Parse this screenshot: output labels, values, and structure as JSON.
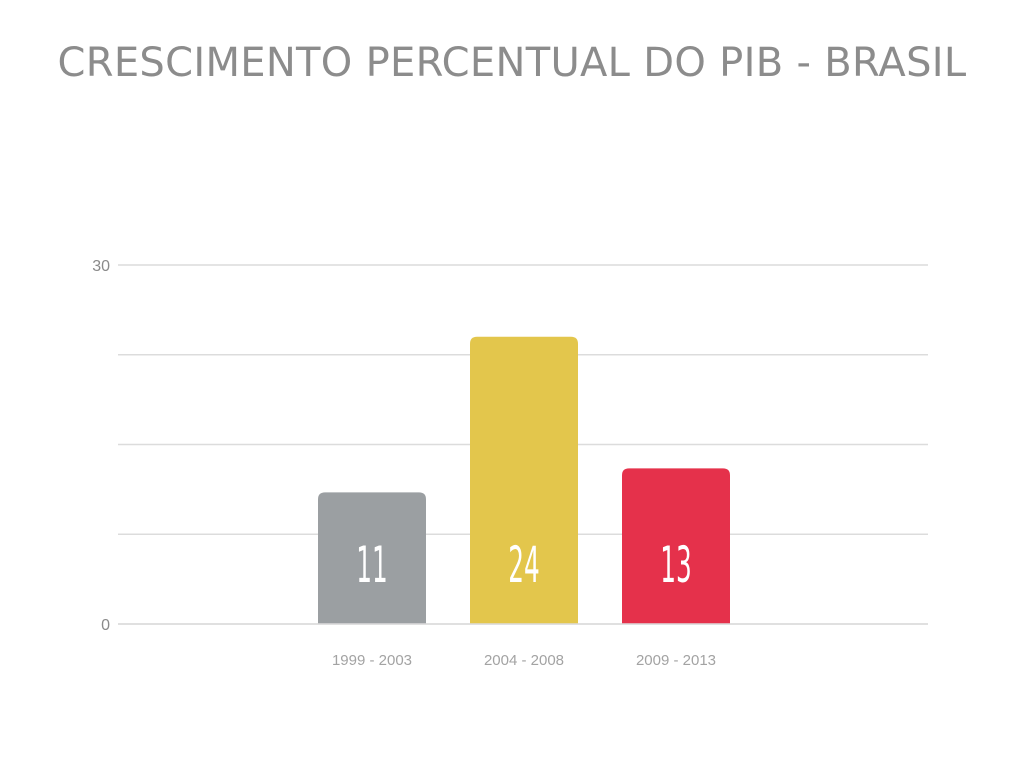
{
  "chart_data": {
    "type": "bar",
    "title": "CRESCIMENTO PERCENTUAL DO PIB - BRASIL",
    "categories": [
      "1999 - 2003",
      "2004 - 2008",
      "2009 - 2013"
    ],
    "values": [
      11,
      24,
      13
    ],
    "ylim": [
      0,
      30
    ],
    "yticks": [
      0,
      30
    ],
    "grid": true,
    "bar_colors": [
      "#9b9fa2",
      "#e3c64c",
      "#e5314b"
    ],
    "value_label_color": "#ffffff",
    "xlabel": "",
    "ylabel": ""
  }
}
